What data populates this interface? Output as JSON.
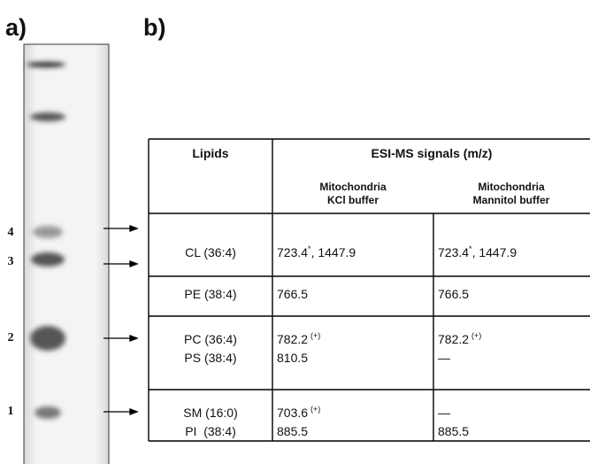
{
  "panels": {
    "a": "a)",
    "b": "b)"
  },
  "lanes": [
    "4",
    "3",
    "2",
    "1"
  ],
  "table": {
    "header": {
      "lipids": "Lipids",
      "signals": "ESI-MS signals (m/z)",
      "columns": [
        [
          "Mitochondria",
          "KCl buffer"
        ],
        [
          "Mitochondria",
          "Mannitol buffer"
        ]
      ]
    },
    "rows": [
      {
        "lipids": [
          "CL (36:4)"
        ],
        "kcl": [
          {
            "text": "723.4",
            "sup": "*",
            "after": ", 1447.9"
          }
        ],
        "mannitol": [
          {
            "text": "723.4",
            "sup": "*",
            "after": ", 1447.9"
          }
        ]
      },
      {
        "lipids": [
          "PE (38:4)"
        ],
        "kcl": [
          {
            "text": "766.5"
          }
        ],
        "mannitol": [
          {
            "text": "766.5"
          }
        ]
      },
      {
        "lipids": [
          "PC (36:4)",
          "PS (38:4)"
        ],
        "kcl": [
          {
            "text": "782.2",
            "sup": "(+)"
          },
          {
            "text": "810.5"
          }
        ],
        "mannitol": [
          {
            "text": "782.2",
            "sup": "(+)"
          },
          {
            "text": "—"
          }
        ]
      },
      {
        "lipids": [
          "SM (16:0)",
          "PI  (38:4)"
        ],
        "kcl": [
          {
            "text": "703.6",
            "sup": "(+)"
          },
          {
            "text": "885.5"
          }
        ],
        "mannitol": [
          {
            "text": "—"
          },
          {
            "text": "885.5"
          }
        ]
      }
    ]
  }
}
